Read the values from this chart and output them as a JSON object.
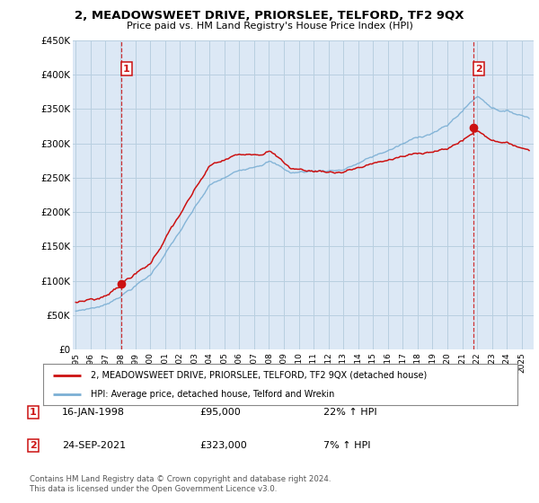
{
  "title": "2, MEADOWSWEET DRIVE, PRIORSLEE, TELFORD, TF2 9QX",
  "subtitle": "Price paid vs. HM Land Registry's House Price Index (HPI)",
  "sale1": {
    "date": "16-JAN-1998",
    "price": 95000,
    "hpi_pct": "22% ↑ HPI",
    "label": "1"
  },
  "sale2": {
    "date": "24-SEP-2021",
    "price": 323000,
    "hpi_pct": "7% ↑ HPI",
    "label": "2"
  },
  "legend1": "2, MEADOWSWEET DRIVE, PRIORSLEE, TELFORD, TF2 9QX (detached house)",
  "legend2": "HPI: Average price, detached house, Telford and Wrekin",
  "footer": "Contains HM Land Registry data © Crown copyright and database right 2024.\nThis data is licensed under the Open Government Licence v3.0.",
  "hpi_color": "#7bafd4",
  "price_color": "#cc1111",
  "sale_marker_color": "#cc1111",
  "chart_bg": "#dce8f5",
  "bg_color": "#ffffff",
  "grid_color": "#b8cfe0",
  "ylim": [
    0,
    450000
  ],
  "yticks": [
    0,
    50000,
    100000,
    150000,
    200000,
    250000,
    300000,
    350000,
    400000,
    450000
  ],
  "sale1_x": 1998.04,
  "sale2_x": 2021.73,
  "xmin": 1994.8,
  "xmax": 2025.8
}
